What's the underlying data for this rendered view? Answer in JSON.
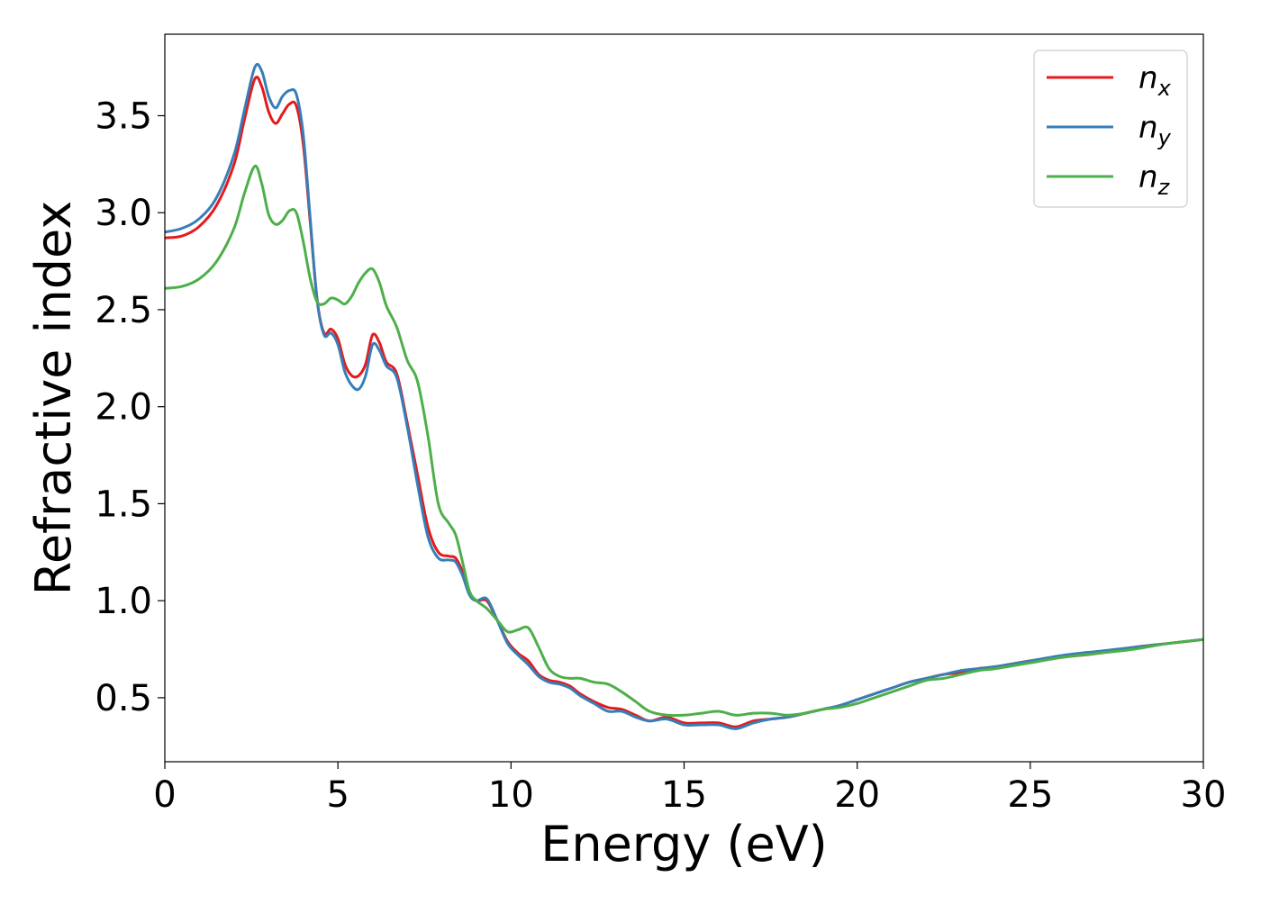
{
  "chart_data": {
    "type": "line",
    "title": "",
    "xlabel": "Energy (eV)",
    "ylabel": "Refractive index",
    "xlim": [
      0,
      30
    ],
    "ylim": [
      0.17,
      3.92
    ],
    "xticks": [
      0,
      5,
      10,
      15,
      20,
      25,
      30
    ],
    "yticks": [
      0.5,
      1.0,
      1.5,
      2.0,
      2.5,
      3.0,
      3.5
    ],
    "xtick_labels": [
      "0",
      "5",
      "10",
      "15",
      "20",
      "25",
      "30"
    ],
    "ytick_labels": [
      "0.5",
      "1.0",
      "1.5",
      "2.0",
      "2.5",
      "3.0",
      "3.5"
    ],
    "grid": false,
    "legend_position": "top-right",
    "series": [
      {
        "name_base": "n",
        "name_sub": "x",
        "color": "#e41a1c",
        "points": [
          [
            0,
            2.87
          ],
          [
            0.5,
            2.88
          ],
          [
            1,
            2.93
          ],
          [
            1.5,
            3.04
          ],
          [
            2,
            3.25
          ],
          [
            2.3,
            3.48
          ],
          [
            2.6,
            3.69
          ],
          [
            2.8,
            3.65
          ],
          [
            3.0,
            3.52
          ],
          [
            3.2,
            3.46
          ],
          [
            3.4,
            3.51
          ],
          [
            3.6,
            3.56
          ],
          [
            3.8,
            3.55
          ],
          [
            4.0,
            3.35
          ],
          [
            4.2,
            2.95
          ],
          [
            4.4,
            2.55
          ],
          [
            4.6,
            2.38
          ],
          [
            4.8,
            2.4
          ],
          [
            5.0,
            2.35
          ],
          [
            5.2,
            2.22
          ],
          [
            5.4,
            2.16
          ],
          [
            5.6,
            2.16
          ],
          [
            5.8,
            2.22
          ],
          [
            6.0,
            2.37
          ],
          [
            6.2,
            2.33
          ],
          [
            6.4,
            2.23
          ],
          [
            6.7,
            2.17
          ],
          [
            7.0,
            1.92
          ],
          [
            7.3,
            1.65
          ],
          [
            7.6,
            1.38
          ],
          [
            7.9,
            1.25
          ],
          [
            8.2,
            1.23
          ],
          [
            8.4,
            1.22
          ],
          [
            8.6,
            1.15
          ],
          [
            8.8,
            1.04
          ],
          [
            9.0,
            1.0
          ],
          [
            9.3,
            1.0
          ],
          [
            9.6,
            0.9
          ],
          [
            9.9,
            0.79
          ],
          [
            10.2,
            0.73
          ],
          [
            10.5,
            0.69
          ],
          [
            10.8,
            0.62
          ],
          [
            11.1,
            0.59
          ],
          [
            11.4,
            0.58
          ],
          [
            11.7,
            0.56
          ],
          [
            12.0,
            0.52
          ],
          [
            12.4,
            0.48
          ],
          [
            12.8,
            0.45
          ],
          [
            13.2,
            0.44
          ],
          [
            13.6,
            0.41
          ],
          [
            14.0,
            0.38
          ],
          [
            14.5,
            0.4
          ],
          [
            15.0,
            0.37
          ],
          [
            15.5,
            0.37
          ],
          [
            16.0,
            0.37
          ],
          [
            16.5,
            0.35
          ],
          [
            17.0,
            0.38
          ],
          [
            17.5,
            0.39
          ],
          [
            18.0,
            0.4
          ],
          [
            18.5,
            0.42
          ],
          [
            19.0,
            0.44
          ],
          [
            19.5,
            0.46
          ],
          [
            20.0,
            0.49
          ],
          [
            20.5,
            0.52
          ],
          [
            21.0,
            0.55
          ],
          [
            21.5,
            0.58
          ],
          [
            22.0,
            0.6
          ],
          [
            22.5,
            0.62
          ],
          [
            23.0,
            0.63
          ],
          [
            23.5,
            0.65
          ],
          [
            24.0,
            0.66
          ],
          [
            25.0,
            0.69
          ],
          [
            26.0,
            0.71
          ],
          [
            27.0,
            0.73
          ],
          [
            28.0,
            0.76
          ],
          [
            29.0,
            0.78
          ],
          [
            30.0,
            0.8
          ]
        ]
      },
      {
        "name_base": "n",
        "name_sub": "y",
        "color": "#377eb8",
        "points": [
          [
            0,
            2.9
          ],
          [
            0.5,
            2.92
          ],
          [
            1,
            2.97
          ],
          [
            1.5,
            3.08
          ],
          [
            2,
            3.3
          ],
          [
            2.3,
            3.53
          ],
          [
            2.6,
            3.75
          ],
          [
            2.8,
            3.73
          ],
          [
            3.0,
            3.6
          ],
          [
            3.2,
            3.54
          ],
          [
            3.4,
            3.6
          ],
          [
            3.6,
            3.63
          ],
          [
            3.8,
            3.61
          ],
          [
            4.0,
            3.4
          ],
          [
            4.2,
            2.97
          ],
          [
            4.4,
            2.55
          ],
          [
            4.6,
            2.37
          ],
          [
            4.8,
            2.38
          ],
          [
            5.0,
            2.32
          ],
          [
            5.2,
            2.18
          ],
          [
            5.4,
            2.11
          ],
          [
            5.6,
            2.09
          ],
          [
            5.8,
            2.16
          ],
          [
            6.0,
            2.32
          ],
          [
            6.2,
            2.29
          ],
          [
            6.4,
            2.21
          ],
          [
            6.7,
            2.15
          ],
          [
            7.0,
            1.9
          ],
          [
            7.3,
            1.6
          ],
          [
            7.6,
            1.33
          ],
          [
            7.9,
            1.22
          ],
          [
            8.2,
            1.21
          ],
          [
            8.4,
            1.2
          ],
          [
            8.6,
            1.13
          ],
          [
            8.8,
            1.03
          ],
          [
            9.0,
            1.0
          ],
          [
            9.3,
            1.01
          ],
          [
            9.6,
            0.9
          ],
          [
            9.9,
            0.78
          ],
          [
            10.2,
            0.72
          ],
          [
            10.5,
            0.67
          ],
          [
            10.8,
            0.61
          ],
          [
            11.1,
            0.58
          ],
          [
            11.4,
            0.57
          ],
          [
            11.7,
            0.55
          ],
          [
            12.0,
            0.51
          ],
          [
            12.4,
            0.47
          ],
          [
            12.8,
            0.43
          ],
          [
            13.2,
            0.43
          ],
          [
            13.6,
            0.4
          ],
          [
            14.0,
            0.38
          ],
          [
            14.5,
            0.39
          ],
          [
            15.0,
            0.36
          ],
          [
            15.5,
            0.36
          ],
          [
            16.0,
            0.36
          ],
          [
            16.5,
            0.34
          ],
          [
            17.0,
            0.37
          ],
          [
            17.5,
            0.39
          ],
          [
            18.0,
            0.4
          ],
          [
            18.5,
            0.42
          ],
          [
            19.0,
            0.44
          ],
          [
            19.5,
            0.46
          ],
          [
            20.0,
            0.49
          ],
          [
            20.5,
            0.52
          ],
          [
            21.0,
            0.55
          ],
          [
            21.5,
            0.58
          ],
          [
            22.0,
            0.6
          ],
          [
            22.5,
            0.62
          ],
          [
            23.0,
            0.64
          ],
          [
            23.5,
            0.65
          ],
          [
            24.0,
            0.66
          ],
          [
            25.0,
            0.69
          ],
          [
            26.0,
            0.72
          ],
          [
            27.0,
            0.74
          ],
          [
            28.0,
            0.76
          ],
          [
            29.0,
            0.78
          ],
          [
            30.0,
            0.8
          ]
        ]
      },
      {
        "name_base": "n",
        "name_sub": "z",
        "color": "#4daf4a",
        "points": [
          [
            0,
            2.61
          ],
          [
            0.5,
            2.62
          ],
          [
            1,
            2.66
          ],
          [
            1.5,
            2.75
          ],
          [
            2,
            2.92
          ],
          [
            2.3,
            3.1
          ],
          [
            2.6,
            3.24
          ],
          [
            2.8,
            3.15
          ],
          [
            3.0,
            2.99
          ],
          [
            3.2,
            2.94
          ],
          [
            3.4,
            2.96
          ],
          [
            3.6,
            3.01
          ],
          [
            3.8,
            3.0
          ],
          [
            4.0,
            2.85
          ],
          [
            4.2,
            2.66
          ],
          [
            4.4,
            2.54
          ],
          [
            4.6,
            2.53
          ],
          [
            4.8,
            2.56
          ],
          [
            5.0,
            2.55
          ],
          [
            5.2,
            2.53
          ],
          [
            5.4,
            2.57
          ],
          [
            5.6,
            2.64
          ],
          [
            5.8,
            2.69
          ],
          [
            6.0,
            2.71
          ],
          [
            6.2,
            2.64
          ],
          [
            6.4,
            2.52
          ],
          [
            6.7,
            2.41
          ],
          [
            7.0,
            2.24
          ],
          [
            7.3,
            2.13
          ],
          [
            7.6,
            1.85
          ],
          [
            7.9,
            1.5
          ],
          [
            8.2,
            1.4
          ],
          [
            8.4,
            1.34
          ],
          [
            8.6,
            1.2
          ],
          [
            8.8,
            1.05
          ],
          [
            9.0,
            1.0
          ],
          [
            9.3,
            0.96
          ],
          [
            9.6,
            0.9
          ],
          [
            9.9,
            0.84
          ],
          [
            10.2,
            0.85
          ],
          [
            10.5,
            0.86
          ],
          [
            10.8,
            0.76
          ],
          [
            11.1,
            0.65
          ],
          [
            11.4,
            0.61
          ],
          [
            11.7,
            0.6
          ],
          [
            12.0,
            0.6
          ],
          [
            12.4,
            0.58
          ],
          [
            12.8,
            0.57
          ],
          [
            13.2,
            0.53
          ],
          [
            13.6,
            0.48
          ],
          [
            14.0,
            0.43
          ],
          [
            14.5,
            0.41
          ],
          [
            15.0,
            0.41
          ],
          [
            15.5,
            0.42
          ],
          [
            16.0,
            0.43
          ],
          [
            16.5,
            0.41
          ],
          [
            17.0,
            0.42
          ],
          [
            17.5,
            0.42
          ],
          [
            18.0,
            0.41
          ],
          [
            18.5,
            0.42
          ],
          [
            19.0,
            0.44
          ],
          [
            19.5,
            0.45
          ],
          [
            20.0,
            0.47
          ],
          [
            20.5,
            0.5
          ],
          [
            21.0,
            0.53
          ],
          [
            21.5,
            0.56
          ],
          [
            22.0,
            0.59
          ],
          [
            22.5,
            0.6
          ],
          [
            23.0,
            0.62
          ],
          [
            23.5,
            0.64
          ],
          [
            24.0,
            0.65
          ],
          [
            25.0,
            0.68
          ],
          [
            26.0,
            0.71
          ],
          [
            27.0,
            0.73
          ],
          [
            28.0,
            0.75
          ],
          [
            29.0,
            0.78
          ],
          [
            30.0,
            0.8
          ]
        ]
      }
    ]
  }
}
